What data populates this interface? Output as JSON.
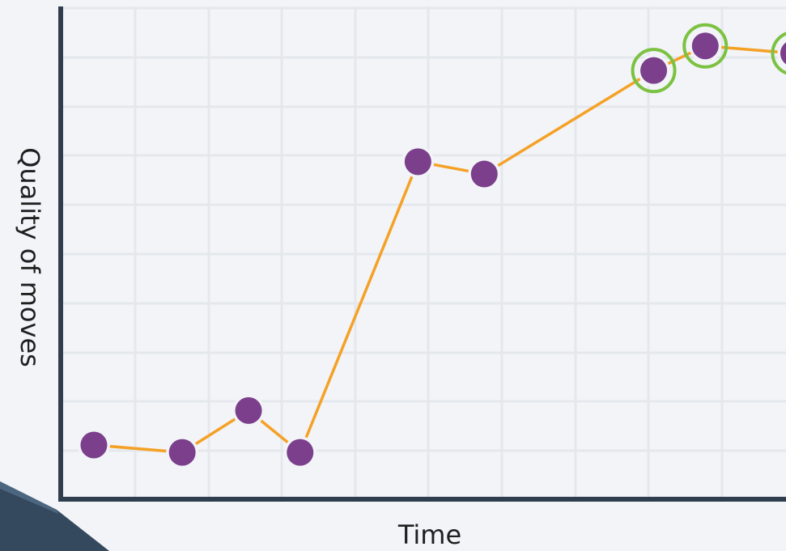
{
  "chart_data": {
    "type": "line",
    "title": "",
    "xlabel": "Time",
    "ylabel": "Quality of moves",
    "grid": true,
    "xlim": [
      0,
      10
    ],
    "ylim": [
      0,
      10
    ],
    "points": [
      {
        "x": 0.45,
        "y": 1.1,
        "highlighted": false
      },
      {
        "x": 1.65,
        "y": 0.95,
        "highlighted": false
      },
      {
        "x": 2.55,
        "y": 1.8,
        "highlighted": false
      },
      {
        "x": 3.25,
        "y": 0.95,
        "highlighted": false
      },
      {
        "x": 4.85,
        "y": 6.85,
        "highlighted": false
      },
      {
        "x": 5.75,
        "y": 6.6,
        "highlighted": false
      },
      {
        "x": 8.05,
        "y": 8.7,
        "highlighted": true
      },
      {
        "x": 8.75,
        "y": 9.2,
        "highlighted": true
      },
      {
        "x": 9.95,
        "y": 9.05,
        "highlighted": true
      }
    ]
  },
  "colors": {
    "background": "#f2f4f7",
    "grid": "#e4e7ec",
    "axis": "#2f3e4e",
    "line": "#f5a126",
    "point": "#7b3f8c",
    "highlight_ring": "#7cc242",
    "corner_shape": "#34495e"
  }
}
